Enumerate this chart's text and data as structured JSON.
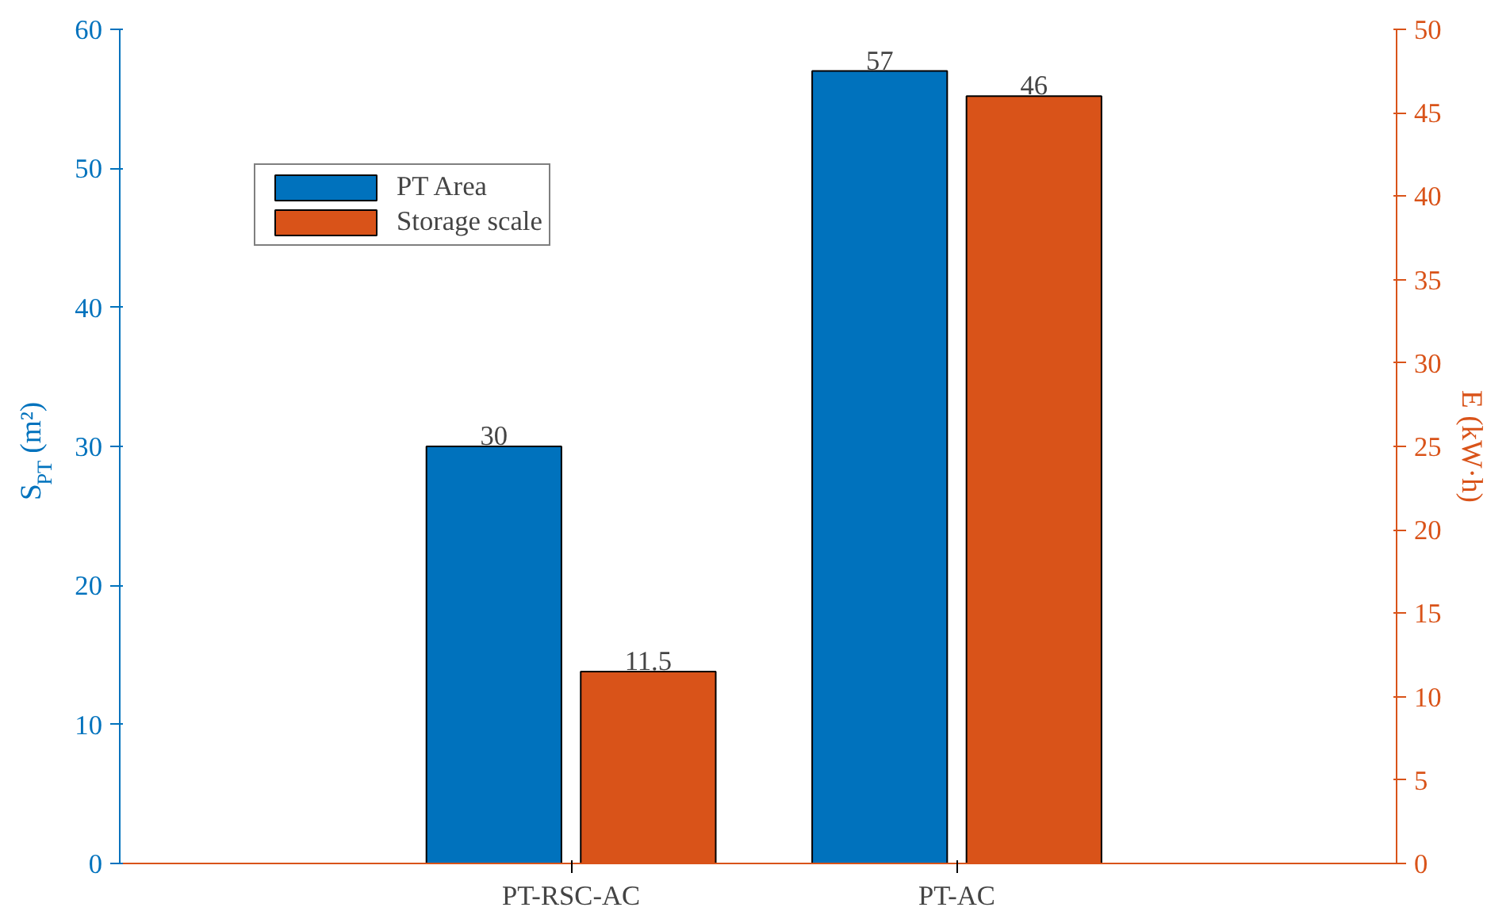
{
  "chart_data": {
    "type": "bar",
    "categories": [
      "PT-RSC-AC",
      "PT-AC"
    ],
    "series": [
      {
        "name": "PT Area",
        "color": "#0072bd",
        "values": [
          30,
          57
        ]
      },
      {
        "name": "Storage scale",
        "color": "#d95319",
        "values": [
          11.5,
          46
        ],
        "axis": "y2"
      }
    ],
    "ylabel": "S$_{PT}$ (m²)",
    "y2label": "E (kW·h)",
    "ylim": [
      0,
      60
    ],
    "yticks": [
      0,
      10,
      20,
      30,
      40,
      50,
      60
    ],
    "y2lim": [
      0,
      50
    ],
    "y2ticks": [
      0,
      5,
      10,
      15,
      20,
      25,
      30,
      35,
      40,
      45,
      50
    ],
    "data_labels": true,
    "legend": "top left",
    "grid": false
  }
}
